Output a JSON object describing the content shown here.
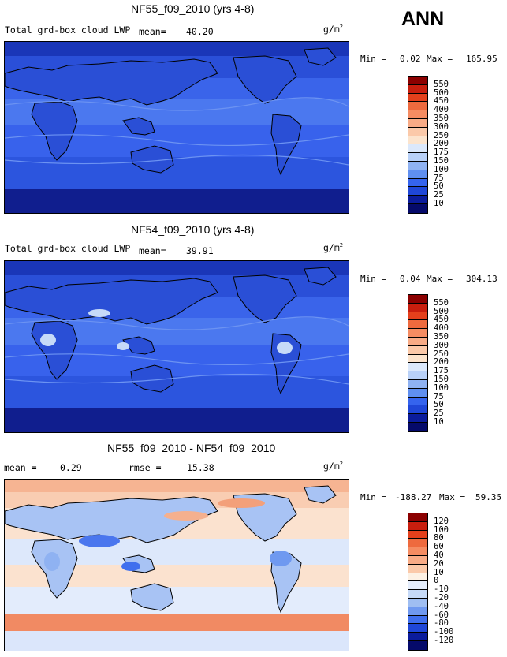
{
  "season": "ANN",
  "unit_base": "g/m",
  "unit_exp": "2",
  "panels": [
    {
      "title": "NF55_f09_2010 (yrs 4-8)",
      "variable": "Total grd-box cloud LWP",
      "mean_label": "mean=",
      "mean_value": "40.20",
      "min_label": "Min =",
      "min_value": "0.02",
      "max_label": "Max =",
      "max_value": "165.95",
      "colorbar": {
        "levels": [
          "550",
          "500",
          "450",
          "400",
          "350",
          "300",
          "250",
          "200",
          "175",
          "150",
          "100",
          "75",
          "50",
          "25",
          "10"
        ],
        "colors": [
          "#8b0000",
          "#c81e0e",
          "#e4401c",
          "#ee6a3e",
          "#f58c62",
          "#f8ab86",
          "#fbc9a9",
          "#fce4cd",
          "#dbe8fb",
          "#b9d1f8",
          "#8fb2f2",
          "#5f8ff0",
          "#3564ee",
          "#1f47d8",
          "#0b1c9c",
          "#050a6a"
        ]
      },
      "fill": "#2d55db"
    },
    {
      "title": "NF54_f09_2010 (yrs 4-8)",
      "variable": "Total grd-box cloud LWP",
      "mean_label": "mean=",
      "mean_value": "39.91",
      "min_label": "Min =",
      "min_value": "0.04",
      "max_label": "Max =",
      "max_value": "304.13",
      "colorbar": {
        "levels": [
          "550",
          "500",
          "450",
          "400",
          "350",
          "300",
          "250",
          "200",
          "175",
          "150",
          "100",
          "75",
          "50",
          "25",
          "10"
        ],
        "colors": [
          "#8b0000",
          "#c81e0e",
          "#e4401c",
          "#ee6a3e",
          "#f58c62",
          "#f8ab86",
          "#fbc9a9",
          "#fce4cd",
          "#dbe8fb",
          "#b9d1f8",
          "#8fb2f2",
          "#5f8ff0",
          "#3564ee",
          "#1f47d8",
          "#0b1c9c",
          "#050a6a"
        ]
      },
      "fill": "#2d55db"
    },
    {
      "title": "NF55_f09_2010 - NF54_f09_2010",
      "mean_label": "mean =",
      "mean_value": "0.29",
      "rmse_label": "rmse =",
      "rmse_value": "15.38",
      "min_label": "Min =",
      "min_value": "-188.27",
      "max_label": "Max =",
      "max_value": "59.35",
      "colorbar": {
        "levels": [
          "120",
          "100",
          "80",
          "60",
          "40",
          "20",
          "10",
          "0",
          "-10",
          "-20",
          "-40",
          "-60",
          "-80",
          "-100",
          "-120"
        ],
        "colors": [
          "#8b0000",
          "#c81e0e",
          "#e4401c",
          "#ee6a3e",
          "#f58c62",
          "#f8ab86",
          "#fbc9a9",
          "#fdf1e4",
          "#e5eefd",
          "#c6daf8",
          "#9fbef2",
          "#6f99f0",
          "#3f6fee",
          "#1f47d8",
          "#0b1c9c",
          "#050a6a"
        ]
      },
      "fill": "#f6f1ec"
    }
  ]
}
